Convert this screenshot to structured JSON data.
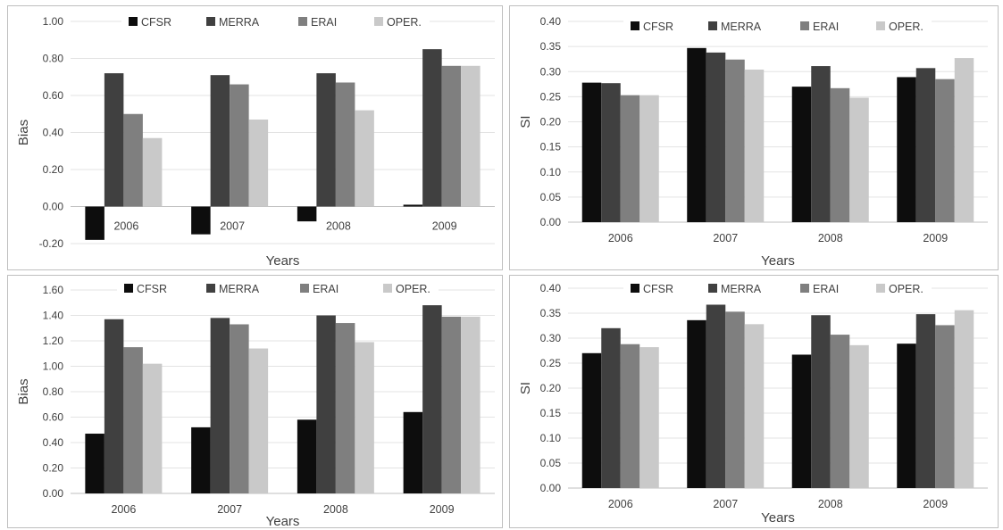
{
  "chart_data": [
    {
      "type": "bar",
      "categories": [
        "2006",
        "2007",
        "2008",
        "2009"
      ],
      "series": [
        {
          "name": "CFSR",
          "values": [
            -0.18,
            -0.15,
            -0.08,
            0.01
          ],
          "color": "#0d0d0d"
        },
        {
          "name": "MERRA",
          "values": [
            0.72,
            0.71,
            0.72,
            0.85
          ],
          "color": "#404040"
        },
        {
          "name": "ERAI",
          "values": [
            0.5,
            0.66,
            0.67,
            0.76
          ],
          "color": "#7f7f7f"
        },
        {
          "name": "OPER.",
          "values": [
            0.37,
            0.47,
            0.52,
            0.76
          ],
          "color": "#c9c9c9"
        }
      ],
      "xlabel": "Years",
      "ylabel": "Bias",
      "ylim": [
        -0.2,
        1.0
      ],
      "yticks": [
        "-0.20",
        "0.00",
        "0.20",
        "0.40",
        "0.60",
        "0.80",
        "1.00"
      ],
      "category_labels_near_zero": true,
      "legend": "top"
    },
    {
      "type": "bar",
      "categories": [
        "2006",
        "2007",
        "2008",
        "2009"
      ],
      "series": [
        {
          "name": "CFSR",
          "values": [
            0.278,
            0.347,
            0.27,
            0.289
          ],
          "color": "#0d0d0d"
        },
        {
          "name": "MERRA",
          "values": [
            0.277,
            0.338,
            0.311,
            0.307
          ],
          "color": "#404040"
        },
        {
          "name": "ERAI",
          "values": [
            0.253,
            0.324,
            0.267,
            0.285
          ],
          "color": "#7f7f7f"
        },
        {
          "name": "OPER.",
          "values": [
            0.253,
            0.304,
            0.248,
            0.327
          ],
          "color": "#c9c9c9"
        }
      ],
      "xlabel": "Years",
      "ylabel": "SI",
      "ylim": [
        0.0,
        0.4
      ],
      "yticks": [
        "0.00",
        "0.05",
        "0.10",
        "0.15",
        "0.20",
        "0.25",
        "0.30",
        "0.35",
        "0.40"
      ],
      "legend": "top"
    },
    {
      "type": "bar",
      "categories": [
        "2006",
        "2007",
        "2008",
        "2009"
      ],
      "series": [
        {
          "name": "CFSR",
          "values": [
            0.47,
            0.52,
            0.58,
            0.64
          ],
          "color": "#0d0d0d"
        },
        {
          "name": "MERRA",
          "values": [
            1.37,
            1.38,
            1.4,
            1.48
          ],
          "color": "#404040"
        },
        {
          "name": "ERAI",
          "values": [
            1.15,
            1.33,
            1.34,
            1.39
          ],
          "color": "#7f7f7f"
        },
        {
          "name": "OPER.",
          "values": [
            1.02,
            1.14,
            1.19,
            1.39
          ],
          "color": "#c9c9c9"
        }
      ],
      "xlabel": "Years",
      "ylabel": "Bias",
      "ylim": [
        0.0,
        1.6
      ],
      "yticks": [
        "0.00",
        "0.20",
        "0.40",
        "0.60",
        "0.80",
        "1.00",
        "1.20",
        "1.40",
        "1.60"
      ],
      "legend": "top"
    },
    {
      "type": "bar",
      "categories": [
        "2006",
        "2007",
        "2008",
        "2009"
      ],
      "series": [
        {
          "name": "CFSR",
          "values": [
            0.27,
            0.336,
            0.267,
            0.289
          ],
          "color": "#0d0d0d"
        },
        {
          "name": "MERRA",
          "values": [
            0.32,
            0.367,
            0.346,
            0.348
          ],
          "color": "#404040"
        },
        {
          "name": "ERAI",
          "values": [
            0.288,
            0.353,
            0.307,
            0.326
          ],
          "color": "#7f7f7f"
        },
        {
          "name": "OPER.",
          "values": [
            0.282,
            0.328,
            0.286,
            0.356
          ],
          "color": "#c9c9c9"
        }
      ],
      "xlabel": "Years",
      "ylabel": "SI",
      "ylim": [
        0.0,
        0.4
      ],
      "yticks": [
        "0.00",
        "0.05",
        "0.10",
        "0.15",
        "0.20",
        "0.25",
        "0.30",
        "0.35",
        "0.40"
      ],
      "legend": "top"
    }
  ]
}
